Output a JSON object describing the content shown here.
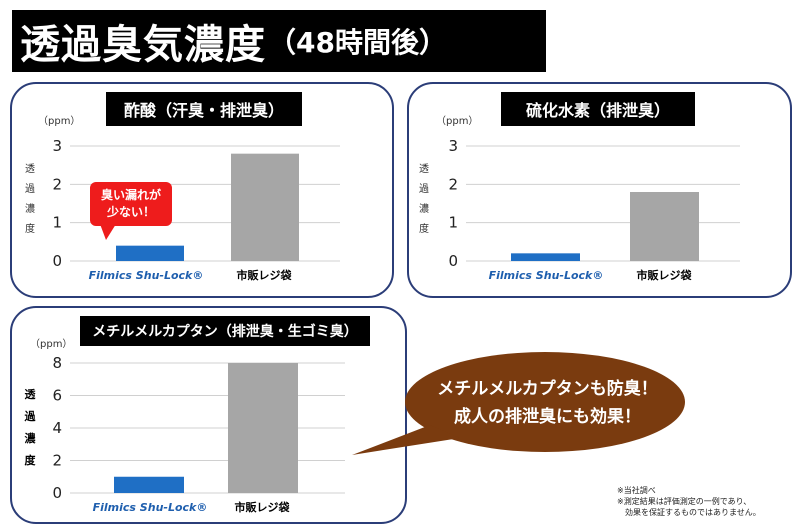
{
  "header": {
    "title": "透過臭気濃度",
    "subtitle": "（48時間後）"
  },
  "colors": {
    "brand_bar": "#1f6fc5",
    "other_bar": "#a6a6a6",
    "callout_red": "#ee1c1c",
    "speech_brown": "#7a3b0f",
    "panel_border": "#2b3d78"
  },
  "chart_data": [
    {
      "type": "bar",
      "title": "酢酸（汗臭・排泄臭）",
      "unit_label": "（ppm）",
      "ylabel": "透過濃度",
      "ylim": [
        0,
        3
      ],
      "yticks": [
        0,
        1,
        2,
        3
      ],
      "categories": [
        "Filmics Shu-Lock®",
        "市販レジ袋"
      ],
      "values": [
        0.4,
        2.8
      ],
      "annotation": {
        "line1": "臭い漏れが",
        "line2": "少ない！"
      }
    },
    {
      "type": "bar",
      "title": "硫化水素（排泄臭）",
      "unit_label": "（ppm）",
      "ylabel": "透過濃度",
      "ylim": [
        0,
        3
      ],
      "yticks": [
        0,
        1,
        2,
        3
      ],
      "categories": [
        "Filmics Shu-Lock®",
        "市販レジ袋"
      ],
      "values": [
        0.2,
        1.8
      ]
    },
    {
      "type": "bar",
      "title": "メチルメルカプタン（排泄臭・生ゴミ臭）",
      "unit_label": "（ppm）",
      "ylabel": "透過濃度",
      "ylim": [
        0,
        8
      ],
      "yticks": [
        0,
        2,
        4,
        6,
        8
      ],
      "categories": [
        "Filmics Shu-Lock®",
        "市販レジ袋"
      ],
      "values": [
        1.0,
        8.0
      ]
    }
  ],
  "speech_bubble": {
    "line1": "メチルメルカプタンも防臭！",
    "line2": "成人の排泄臭にも効果！"
  },
  "footnote": {
    "line1": "※当社調べ",
    "line2": "※測定結果は評価測定の一例であり、",
    "line3": "効果を保証するものではありません。"
  }
}
